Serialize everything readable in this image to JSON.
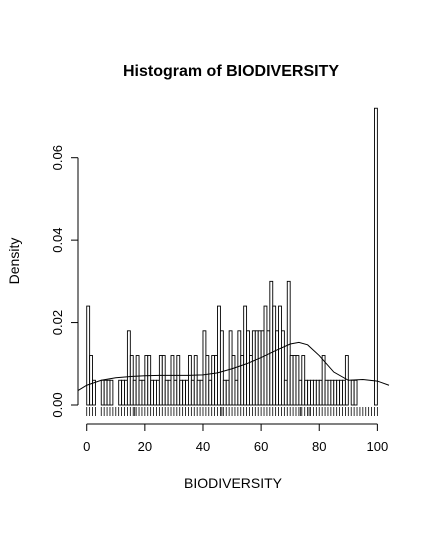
{
  "chart_data": {
    "type": "bar",
    "title": "Histogram of BIODIVERSITY",
    "xlabel": "BIODIVERSITY",
    "ylabel": "Density",
    "xlim": [
      -3,
      104
    ],
    "ylim": [
      0,
      0.074
    ],
    "x_ticks": [
      0,
      20,
      40,
      60,
      80,
      100
    ],
    "x_tick_labels": [
      "0",
      "20",
      "40",
      "60",
      "80",
      "100"
    ],
    "y_ticks": [
      0.0,
      0.02,
      0.04,
      0.06
    ],
    "y_tick_labels": [
      "0.00",
      "0.02",
      "0.04",
      "0.06"
    ],
    "bin_width": 1,
    "bin_starts": [
      0,
      1,
      2,
      5,
      6,
      7,
      8,
      11,
      12,
      13,
      14,
      15,
      16,
      17,
      18,
      19,
      20,
      21,
      22,
      23,
      24,
      25,
      26,
      27,
      28,
      29,
      30,
      31,
      32,
      33,
      34,
      35,
      36,
      37,
      38,
      39,
      40,
      41,
      42,
      43,
      44,
      45,
      46,
      47,
      48,
      49,
      50,
      51,
      52,
      53,
      54,
      55,
      56,
      57,
      58,
      59,
      60,
      61,
      62,
      63,
      64,
      65,
      66,
      67,
      68,
      69,
      70,
      71,
      72,
      73,
      74,
      75,
      76,
      77,
      78,
      79,
      80,
      81,
      82,
      83,
      84,
      85,
      86,
      87,
      88,
      89,
      91,
      92,
      99
    ],
    "densities": [
      0.024,
      0.012,
      0.006,
      0.006,
      0.006,
      0.006,
      0.006,
      0.006,
      0.006,
      0.006,
      0.018,
      0.012,
      0.006,
      0.012,
      0.006,
      0.006,
      0.012,
      0.012,
      0.006,
      0.006,
      0.006,
      0.012,
      0.012,
      0.006,
      0.006,
      0.012,
      0.006,
      0.012,
      0.006,
      0.006,
      0.006,
      0.012,
      0.006,
      0.012,
      0.006,
      0.006,
      0.018,
      0.012,
      0.006,
      0.012,
      0.012,
      0.024,
      0.018,
      0.006,
      0.006,
      0.018,
      0.012,
      0.006,
      0.018,
      0.012,
      0.024,
      0.018,
      0.012,
      0.018,
      0.018,
      0.018,
      0.018,
      0.024,
      0.018,
      0.03,
      0.024,
      0.018,
      0.024,
      0.018,
      0.006,
      0.03,
      0.012,
      0.012,
      0.012,
      0.006,
      0.012,
      0.006,
      0.006,
      0.006,
      0.006,
      0.006,
      0.006,
      0.012,
      0.006,
      0.006,
      0.006,
      0.006,
      0.006,
      0.006,
      0.006,
      0.012,
      0.006,
      0.006,
      0.072
    ],
    "density_curve": {
      "x": [
        -3,
        0,
        5,
        10,
        15,
        20,
        25,
        30,
        35,
        40,
        45,
        50,
        55,
        60,
        65,
        70,
        73,
        76,
        80,
        85,
        90,
        95,
        100,
        104
      ],
      "y": [
        0.0035,
        0.0048,
        0.006,
        0.0066,
        0.0069,
        0.0071,
        0.0072,
        0.0072,
        0.0072,
        0.0073,
        0.0078,
        0.0088,
        0.01,
        0.0115,
        0.0132,
        0.0148,
        0.0152,
        0.0146,
        0.012,
        0.008,
        0.006,
        0.0062,
        0.0058,
        0.0048
      ]
    },
    "rug": [
      0,
      1,
      2,
      3,
      5,
      6,
      7,
      8,
      9,
      10,
      11,
      12,
      13,
      14,
      15,
      16,
      16.5,
      17,
      18,
      19,
      20,
      21,
      22,
      23,
      24,
      25,
      26,
      27,
      28,
      29,
      30,
      31,
      32,
      33,
      34,
      35,
      36,
      37,
      38,
      39,
      40,
      41,
      42,
      43,
      44,
      45,
      46,
      46.5,
      47,
      48,
      49,
      50,
      51,
      52,
      53,
      54,
      55,
      56,
      57,
      58,
      59,
      60,
      61,
      62,
      63,
      64,
      65,
      66,
      67,
      68,
      69,
      70,
      71,
      72,
      73,
      73.5,
      74,
      75,
      76,
      76.5,
      77,
      78,
      79,
      80,
      81,
      82,
      83,
      84,
      85,
      86,
      87,
      88,
      89,
      90,
      91,
      92,
      93,
      94,
      95,
      96,
      97,
      98,
      99,
      100
    ]
  }
}
